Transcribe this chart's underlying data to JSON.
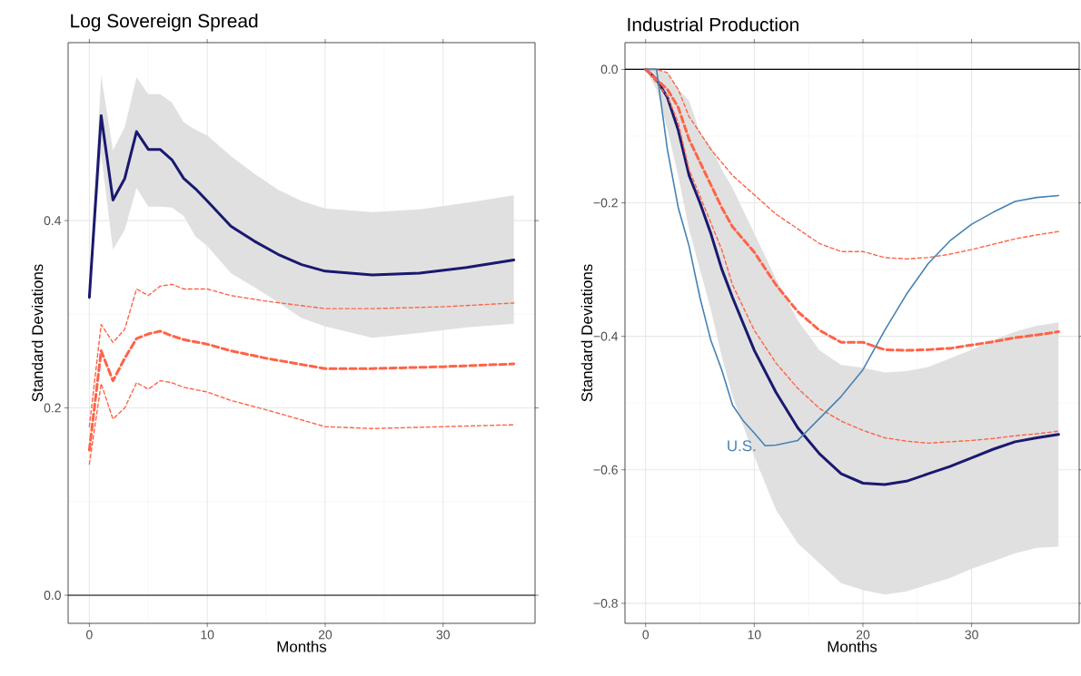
{
  "chart_data": [
    {
      "type": "line",
      "title": "Log Sovereign Spread",
      "xlabel": "Months",
      "ylabel": "Standard Deviations",
      "xlim": [
        -1.8,
        37.8
      ],
      "ylim": [
        -0.03,
        0.59
      ],
      "xticks": [
        0,
        10,
        20,
        30
      ],
      "yticks": [
        {
          "value": 0,
          "label": "0.0"
        },
        {
          "value": 0.2,
          "label": "0.2"
        },
        {
          "value": 0.4,
          "label": "0.4"
        }
      ],
      "grid": true,
      "marker": "none",
      "ref_lines": [
        {
          "axis": "y",
          "value": 0,
          "color": "#000000"
        }
      ],
      "series": [
        {
          "color": "#191970",
          "line_style": "solid",
          "x": [
            0,
            1,
            2,
            3,
            4,
            5,
            6,
            7,
            8,
            9,
            10,
            12,
            14,
            16,
            18,
            20,
            24,
            28,
            32,
            36
          ],
          "values": [
            0.318,
            0.512,
            0.422,
            0.445,
            0.495,
            0.476,
            0.476,
            0.465,
            0.445,
            0.434,
            0.421,
            0.394,
            0.378,
            0.364,
            0.353,
            0.346,
            0.342,
            0.344,
            0.35,
            0.358
          ],
          "upper": [
            0.32,
            0.555,
            0.475,
            0.5,
            0.553,
            0.535,
            0.535,
            0.526,
            0.505,
            0.497,
            0.491,
            0.469,
            0.45,
            0.433,
            0.421,
            0.413,
            0.409,
            0.412,
            0.419,
            0.427
          ],
          "lower": [
            0.315,
            0.47,
            0.369,
            0.39,
            0.435,
            0.415,
            0.415,
            0.414,
            0.405,
            0.383,
            0.373,
            0.344,
            0.329,
            0.313,
            0.296,
            0.287,
            0.275,
            0.28,
            0.286,
            0.29
          ]
        },
        {
          "color": "#ff6347",
          "line_style": "dashed",
          "x": [
            0,
            1,
            2,
            3,
            4,
            5,
            6,
            7,
            8,
            10,
            12,
            15,
            20,
            24,
            30,
            36
          ],
          "values": [
            0.155,
            0.261,
            0.229,
            0.253,
            0.274,
            0.279,
            0.282,
            0.277,
            0.273,
            0.268,
            0.261,
            0.253,
            0.242,
            0.242,
            0.244,
            0.247
          ]
        },
        {
          "color": "#ff6347",
          "line_style": "dashed",
          "x": [
            0,
            1,
            2,
            3,
            4,
            5,
            6,
            7,
            8,
            10,
            12,
            15,
            20,
            24,
            30,
            36
          ],
          "values": [
            0.18,
            0.289,
            0.27,
            0.284,
            0.327,
            0.32,
            0.33,
            0.332,
            0.327,
            0.327,
            0.32,
            0.314,
            0.306,
            0.306,
            0.308,
            0.312
          ]
        },
        {
          "color": "#ff6347",
          "line_style": "dashed",
          "x": [
            0,
            1,
            2,
            3,
            4,
            5,
            6,
            7,
            8,
            10,
            12,
            15,
            20,
            24,
            30,
            36
          ],
          "values": [
            0.14,
            0.226,
            0.188,
            0.2,
            0.227,
            0.22,
            0.229,
            0.227,
            0.222,
            0.217,
            0.208,
            0.198,
            0.18,
            0.178,
            0.18,
            0.182
          ]
        }
      ]
    },
    {
      "type": "line",
      "title": "Industrial Production",
      "xlabel": "Months",
      "ylabel": "Standard Deviations",
      "xlim": [
        -1.9,
        39.9
      ],
      "ylim": [
        -0.83,
        0.04
      ],
      "xticks": [
        0,
        10,
        20,
        30
      ],
      "yticks": [
        {
          "value": -0.8,
          "label": "−0.8"
        },
        {
          "value": -0.6,
          "label": "−0.6"
        },
        {
          "value": -0.4,
          "label": "−0.4"
        },
        {
          "value": -0.2,
          "label": "−0.2"
        },
        {
          "value": 0,
          "label": "0.0"
        }
      ],
      "grid": true,
      "marker": "none",
      "ref_lines": [
        {
          "axis": "y",
          "value": 0,
          "color": "#000000"
        }
      ],
      "series": [
        {
          "color": "#191970",
          "line_style": "solid",
          "x": [
            0,
            1,
            2,
            3,
            4,
            5,
            6,
            7,
            8,
            10,
            12,
            14,
            16,
            18,
            20,
            22,
            24,
            26,
            28,
            30,
            32,
            34,
            36,
            38
          ],
          "values": [
            0,
            -0.015,
            -0.042,
            -0.091,
            -0.159,
            -0.2,
            -0.246,
            -0.299,
            -0.342,
            -0.421,
            -0.484,
            -0.537,
            -0.576,
            -0.606,
            -0.62,
            -0.622,
            -0.617,
            -0.606,
            -0.595,
            -0.582,
            -0.569,
            -0.558,
            -0.552,
            -0.547
          ],
          "upper": [
            0,
            0,
            -0.005,
            -0.03,
            -0.047,
            -0.095,
            -0.115,
            -0.15,
            -0.178,
            -0.246,
            -0.314,
            -0.376,
            -0.421,
            -0.443,
            -0.447,
            -0.454,
            -0.452,
            -0.446,
            -0.433,
            -0.42,
            -0.406,
            -0.393,
            -0.384,
            -0.379
          ],
          "lower": [
            0,
            -0.03,
            -0.09,
            -0.16,
            -0.24,
            -0.3,
            -0.36,
            -0.43,
            -0.49,
            -0.58,
            -0.66,
            -0.71,
            -0.74,
            -0.77,
            -0.78,
            -0.787,
            -0.782,
            -0.772,
            -0.762,
            -0.748,
            -0.737,
            -0.725,
            -0.717,
            -0.715
          ]
        },
        {
          "color": "#ff6347",
          "line_style": "dashed",
          "x": [
            0,
            2,
            3,
            4,
            5,
            6,
            7,
            8,
            10,
            12,
            14,
            16,
            18,
            20,
            22,
            24,
            26,
            28,
            30,
            32,
            34,
            36,
            38
          ],
          "values": [
            0,
            -0.03,
            -0.057,
            -0.105,
            -0.139,
            -0.173,
            -0.207,
            -0.236,
            -0.274,
            -0.323,
            -0.363,
            -0.391,
            -0.409,
            -0.409,
            -0.42,
            -0.421,
            -0.42,
            -0.418,
            -0.413,
            -0.408,
            -0.402,
            -0.398,
            -0.393
          ]
        },
        {
          "color": "#ff6347",
          "line_style": "dashed",
          "x": [
            0,
            1,
            2,
            3,
            4,
            5,
            6,
            8,
            10,
            12,
            14,
            16,
            18,
            20,
            22,
            24,
            26,
            28,
            30,
            32,
            34,
            36,
            38
          ],
          "values": [
            0,
            0,
            -0.005,
            -0.03,
            -0.071,
            -0.095,
            -0.12,
            -0.159,
            -0.188,
            -0.217,
            -0.239,
            -0.261,
            -0.273,
            -0.273,
            -0.282,
            -0.284,
            -0.282,
            -0.277,
            -0.27,
            -0.262,
            -0.254,
            -0.248,
            -0.243
          ]
        },
        {
          "color": "#ff6347",
          "line_style": "dashed",
          "x": [
            0,
            2,
            3,
            4,
            5,
            6,
            7,
            8,
            10,
            12,
            14,
            16,
            18,
            20,
            22,
            24,
            26,
            28,
            30,
            32,
            34,
            36,
            38
          ],
          "values": [
            0,
            -0.04,
            -0.08,
            -0.15,
            -0.19,
            -0.23,
            -0.27,
            -0.323,
            -0.391,
            -0.44,
            -0.478,
            -0.508,
            -0.527,
            -0.541,
            -0.552,
            -0.557,
            -0.56,
            -0.558,
            -0.556,
            -0.553,
            -0.549,
            -0.546,
            -0.542
          ]
        },
        {
          "name": "U.S.",
          "color": "#4682b4",
          "line_style": "solid",
          "x": [
            0,
            1,
            2,
            3,
            4,
            5,
            6,
            7,
            8,
            9,
            10,
            11,
            12,
            14,
            16,
            18,
            20,
            22,
            24,
            26,
            28,
            30,
            32,
            34,
            36,
            38
          ],
          "values": [
            0,
            0,
            -0.12,
            -0.207,
            -0.265,
            -0.342,
            -0.406,
            -0.45,
            -0.503,
            -0.527,
            -0.545,
            -0.564,
            -0.563,
            -0.556,
            -0.523,
            -0.49,
            -0.45,
            -0.391,
            -0.337,
            -0.291,
            -0.257,
            -0.232,
            -0.214,
            -0.198,
            -0.192,
            -0.189
          ]
        }
      ]
    }
  ]
}
